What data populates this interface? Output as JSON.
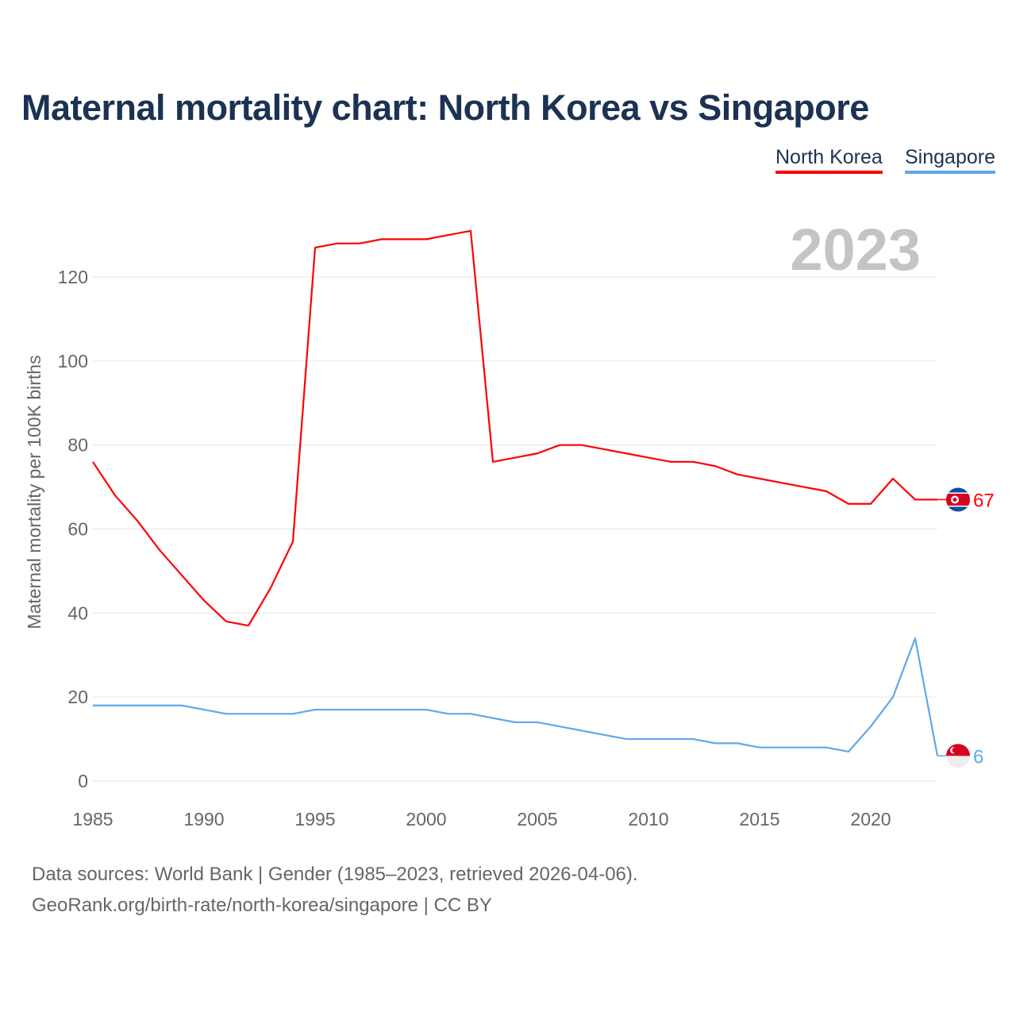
{
  "title": "Maternal mortality chart: North Korea vs Singapore",
  "legend": [
    "North Korea",
    "Singapore"
  ],
  "footer": {
    "line1": "Data sources: World Bank | Gender (1985–2023, retrieved 2026-04-06).",
    "line2": "GeoRank.org/birth-rate/north-korea/singapore | CC BY"
  },
  "chart_data": {
    "type": "line",
    "title": "Maternal mortality chart: North Korea vs Singapore",
    "xlabel": "",
    "ylabel": "Maternal mortality per 100K births",
    "year_label": "2023",
    "xlim": [
      1985,
      2023
    ],
    "ylim": [
      0,
      120
    ],
    "x_ticks": [
      1985,
      1990,
      1995,
      2000,
      2005,
      2010,
      2015,
      2020
    ],
    "y_ticks": [
      0,
      20,
      40,
      60,
      80,
      100,
      120
    ],
    "grid": true,
    "legend_position": "top-right",
    "x": [
      1985,
      1986,
      1987,
      1988,
      1989,
      1990,
      1991,
      1992,
      1993,
      1994,
      1995,
      1996,
      1997,
      1998,
      1999,
      2000,
      2001,
      2002,
      2003,
      2004,
      2005,
      2006,
      2007,
      2008,
      2009,
      2010,
      2011,
      2012,
      2013,
      2014,
      2015,
      2016,
      2017,
      2018,
      2019,
      2020,
      2021,
      2022,
      2023
    ],
    "series": [
      {
        "name": "North Korea",
        "color": "#ff0000",
        "end_label": "67",
        "values": [
          76,
          68,
          62,
          55,
          49,
          43,
          38,
          37,
          46,
          57,
          127,
          128,
          128,
          129,
          129,
          129,
          130,
          131,
          76,
          77,
          78,
          80,
          80,
          79,
          78,
          77,
          76,
          76,
          75,
          73,
          72,
          71,
          70,
          69,
          66,
          66,
          72,
          67,
          67
        ]
      },
      {
        "name": "Singapore",
        "color": "#5ea8ec",
        "end_label": "6",
        "values": [
          18,
          18,
          18,
          18,
          18,
          17,
          16,
          16,
          16,
          16,
          17,
          17,
          17,
          17,
          17,
          17,
          16,
          16,
          15,
          14,
          14,
          13,
          12,
          11,
          10,
          10,
          10,
          10,
          9,
          9,
          8,
          8,
          8,
          8,
          7,
          13,
          20,
          34,
          6
        ]
      }
    ]
  }
}
